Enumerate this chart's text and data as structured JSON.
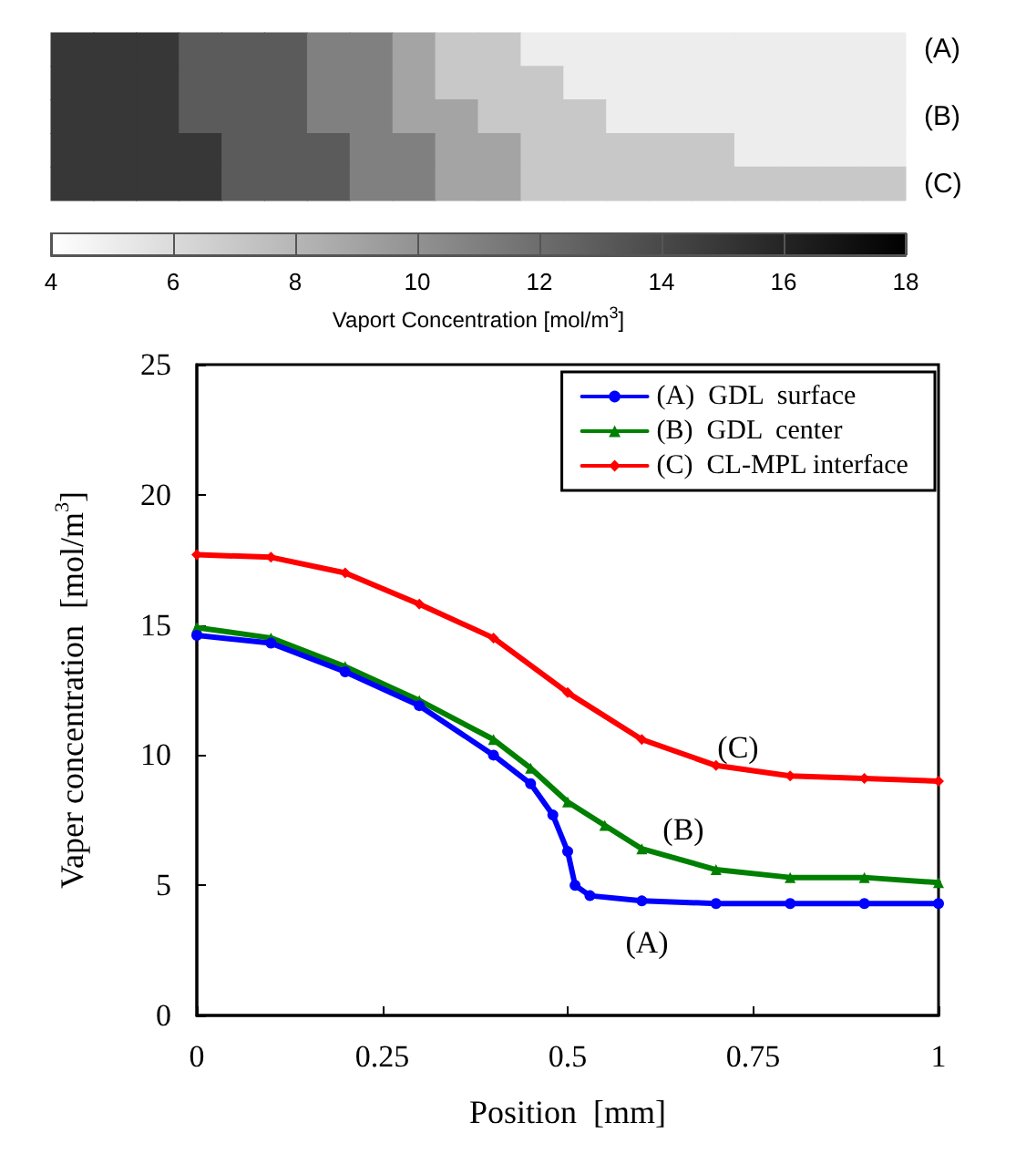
{
  "chart_data": [
    {
      "type": "heatmap",
      "categories": [
        null,
        null,
        null,
        null,
        null,
        null,
        null,
        null,
        null,
        null,
        null,
        null,
        null,
        null,
        null,
        null,
        null,
        null,
        null,
        null
      ],
      "y_categories": [
        null,
        null,
        null,
        null,
        null
      ],
      "y2_categories": [
        "(A)",
        null,
        "(B)",
        null,
        "(C)"
      ],
      "cells": [
        [
          15,
          15,
          15,
          13,
          13,
          13,
          11,
          11,
          9,
          7,
          7,
          5,
          5,
          5,
          5,
          5,
          5,
          5,
          5,
          5
        ],
        [
          15,
          15,
          15,
          13,
          13,
          13,
          11,
          11,
          9,
          7,
          7,
          7,
          5,
          5,
          5,
          5,
          5,
          5,
          5,
          5
        ],
        [
          15,
          15,
          15,
          13,
          13,
          13,
          11,
          11,
          9,
          9,
          7,
          7,
          7,
          5,
          5,
          5,
          5,
          5,
          5,
          5
        ],
        [
          15,
          15,
          15,
          15,
          13,
          13,
          13,
          11,
          11,
          9,
          9,
          7,
          7,
          7,
          7,
          7,
          5,
          5,
          5,
          5
        ],
        [
          15,
          15,
          15,
          15,
          13,
          13,
          13,
          11,
          11,
          9,
          9,
          7,
          7,
          7,
          7,
          7,
          7,
          7,
          7,
          7
        ]
      ],
      "clim": [
        4,
        18
      ],
      "cticks": [
        4,
        6,
        8,
        10,
        12,
        14,
        16,
        18
      ],
      "clabel": "Vaport Concentration [mol/m$^{3}$]"
    },
    {
      "type": "line",
      "xlabel": "Position  [mm]",
      "ylabel": "Vaper concentration  [mol/m$^{3}$]",
      "xlim": [
        0,
        1
      ],
      "xticks": [
        0,
        0.25,
        0.5,
        0.75,
        1
      ],
      "ylim": [
        0,
        25
      ],
      "yticks": [
        0,
        5,
        10,
        15,
        20,
        25
      ],
      "legend": "top right",
      "grid": false,
      "series": [
        {
          "name": "(A)  GDL  surface",
          "color": "#0000ff",
          "marker": "circle",
          "x": [
            0,
            0.1,
            0.2,
            0.3,
            0.4,
            0.45,
            0.48,
            0.5,
            0.51,
            0.53,
            0.6,
            0.7,
            0.8,
            0.9,
            1
          ],
          "values": [
            14.6,
            14.3,
            13.2,
            11.9,
            10.0,
            8.9,
            7.7,
            6.3,
            5.0,
            4.6,
            4.4,
            4.3,
            4.3,
            4.3,
            4.3
          ]
        },
        {
          "name": "(B)  GDL  center",
          "color": "#008000",
          "marker": "triangle",
          "x": [
            0,
            0.1,
            0.2,
            0.3,
            0.4,
            0.45,
            0.5,
            0.55,
            0.6,
            0.7,
            0.8,
            0.9,
            1
          ],
          "values": [
            14.9,
            14.5,
            13.4,
            12.1,
            10.6,
            9.5,
            8.2,
            7.3,
            6.4,
            5.6,
            5.3,
            5.3,
            5.1
          ]
        },
        {
          "name": "(C)  CL-MPL interface",
          "color": "#ff0000",
          "marker": "diamond",
          "x": [
            0,
            0.1,
            0.2,
            0.3,
            0.4,
            0.5,
            0.6,
            0.7,
            0.8,
            0.9,
            1
          ],
          "values": [
            17.7,
            17.6,
            17.0,
            15.8,
            14.5,
            12.4,
            10.6,
            9.6,
            9.2,
            9.1,
            9.0
          ]
        }
      ],
      "annotations": [
        "(A)",
        "(B)",
        "(C)"
      ]
    }
  ]
}
